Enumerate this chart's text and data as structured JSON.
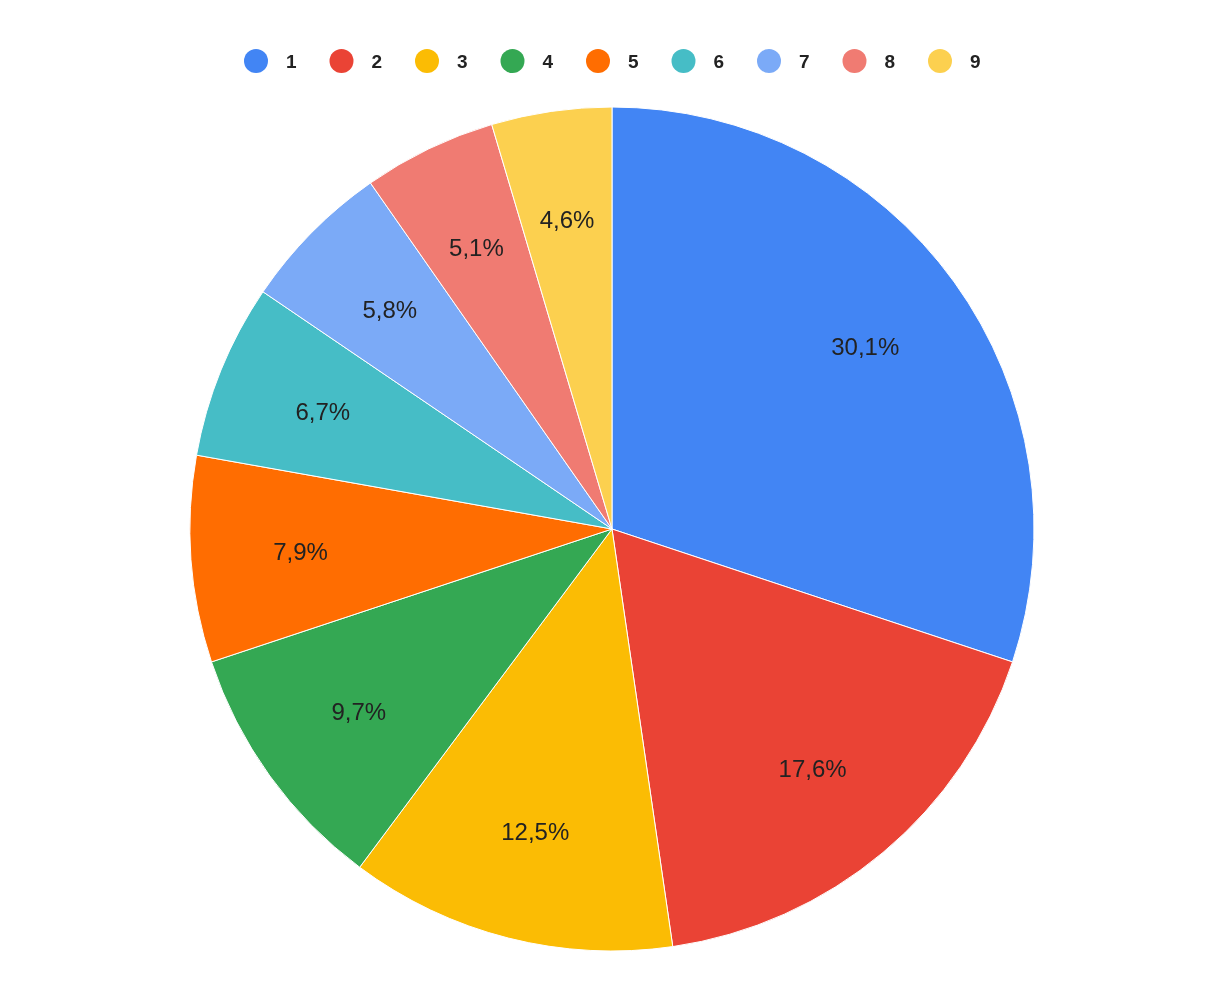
{
  "chart_data": {
    "type": "pie",
    "categories": [
      "1",
      "2",
      "3",
      "4",
      "5",
      "6",
      "7",
      "8",
      "9"
    ],
    "values": [
      30.1,
      17.6,
      12.5,
      9.7,
      7.9,
      6.7,
      5.8,
      5.1,
      4.6
    ],
    "value_labels": [
      "30,1%",
      "17,6%",
      "12,5%",
      "9,7%",
      "7,9%",
      "6,7%",
      "5,8%",
      "5,1%",
      "4,6%"
    ],
    "colors": [
      "#4285f4",
      "#ea4335",
      "#fbbc04",
      "#34a853",
      "#ff6d01",
      "#46bdc6",
      "#7baaf7",
      "#f07b72",
      "#fcd04f"
    ],
    "legend": "top"
  }
}
